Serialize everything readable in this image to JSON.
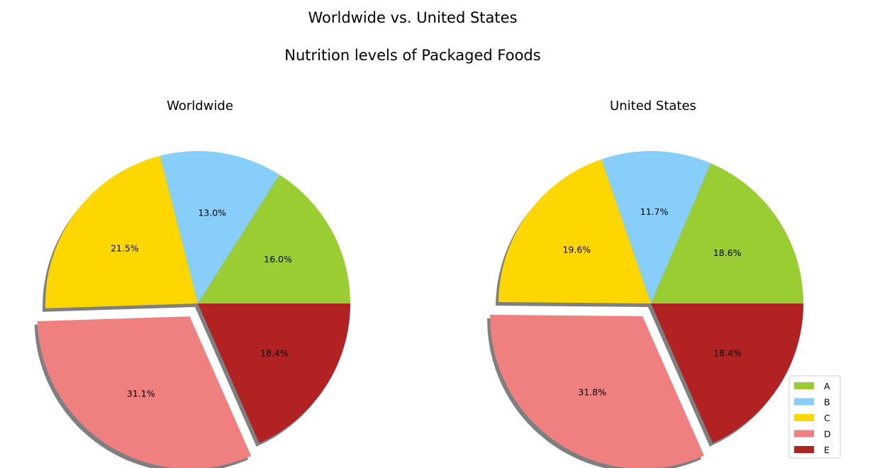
{
  "header": {
    "title_line1": "Worldwide vs. United States",
    "title_line2": "Nutrition levels of Packaged Foods"
  },
  "chart_data": [
    {
      "type": "pie",
      "title": "Worldwide",
      "categories": [
        "A",
        "B",
        "C",
        "D",
        "E"
      ],
      "values": [
        16.0,
        13.0,
        21.5,
        31.1,
        18.4
      ],
      "labels": [
        "16.0%",
        "13.0%",
        "21.5%",
        "31.1%",
        "18.4%"
      ],
      "colors": [
        "#9acd32",
        "#87cefa",
        "#ffd700",
        "#f08080",
        "#b22222"
      ],
      "explode": [
        "D"
      ],
      "shadow": true
    },
    {
      "type": "pie",
      "title": "United States",
      "categories": [
        "A",
        "B",
        "C",
        "D",
        "E"
      ],
      "values": [
        18.6,
        11.7,
        19.6,
        31.8,
        18.4
      ],
      "labels": [
        "18.6%",
        "11.7%",
        "19.6%",
        "31.8%",
        "18.4%"
      ],
      "colors": [
        "#9acd32",
        "#87cefa",
        "#ffd700",
        "#f08080",
        "#b22222"
      ],
      "explode": [
        "D"
      ],
      "shadow": true,
      "legend": "lower-right"
    }
  ]
}
